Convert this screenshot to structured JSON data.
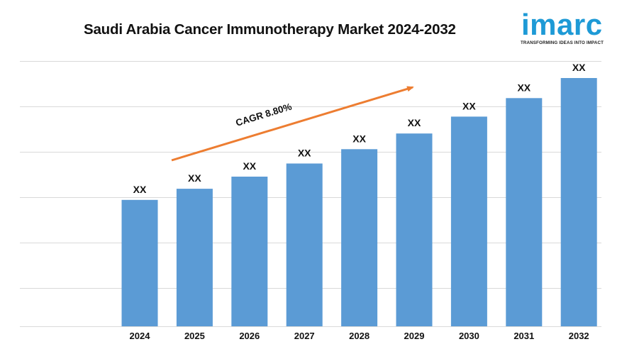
{
  "title": "Saudi Arabia Cancer Immunotherapy Market 2024-2032",
  "logo": {
    "name": "imarc",
    "tagline": "TRANSFORMING IDEAS INTO IMPACT"
  },
  "colors": {
    "bar": "#5b9bd5",
    "arrow": "#ed7d31",
    "logo": "#1e9ad6"
  },
  "chart_data": {
    "type": "bar",
    "categories": [
      "2024",
      "2025",
      "2026",
      "2027",
      "2028",
      "2029",
      "2030",
      "2031",
      "2032"
    ],
    "values": [
      1.0,
      1.088,
      1.184,
      1.288,
      1.401,
      1.525,
      1.659,
      1.805,
      1.964
    ],
    "data_labels": [
      "XX",
      "XX",
      "XX",
      "XX",
      "XX",
      "XX",
      "XX",
      "XX",
      "XX"
    ],
    "ylim": [
      0,
      2.2
    ],
    "grid": true,
    "annotation": "CAGR 8.80%"
  }
}
